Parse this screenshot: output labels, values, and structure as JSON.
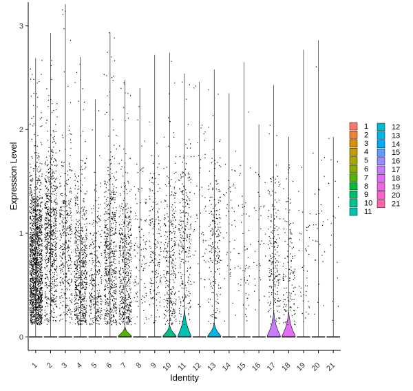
{
  "chart_data": {
    "type": "violin",
    "xlabel": "Identity",
    "ylabel": "Expression Level",
    "categories": [
      "1",
      "2",
      "3",
      "4",
      "5",
      "6",
      "7",
      "8",
      "9",
      "10",
      "11",
      "12",
      "13",
      "14",
      "15",
      "16",
      "17",
      "18",
      "19",
      "20",
      "21"
    ],
    "ylim": [
      -0.13,
      3.23
    ],
    "yticks": [
      0,
      1,
      2,
      3
    ],
    "ymax_per_group": [
      2.69,
      2.93,
      3.21,
      2.7,
      2.29,
      2.94,
      2.48,
      2.4,
      2.72,
      2.74,
      2.54,
      2.46,
      2.58,
      2.35,
      2.65,
      2.05,
      2.43,
      1.93,
      2.77,
      2.86,
      1.93
    ],
    "violin_peak_width": [
      0,
      0,
      0,
      0,
      0,
      0,
      0.45,
      0,
      0,
      0.45,
      0.45,
      0,
      0.45,
      0,
      0,
      0,
      0.45,
      0.45,
      0,
      0,
      0
    ],
    "violin_shape_height": [
      0,
      0,
      0,
      0,
      0,
      0,
      0.1,
      0,
      0,
      0.12,
      0.27,
      0,
      0.14,
      0,
      0,
      0,
      0.25,
      0.25,
      0,
      0,
      0
    ],
    "nonzero_points_per_group": [
      1500,
      700,
      380,
      600,
      280,
      550,
      500,
      110,
      170,
      300,
      260,
      55,
      200,
      45,
      55,
      35,
      200,
      130,
      45,
      30,
      18
    ],
    "points_center": [
      0.7,
      1.0,
      0.9,
      0.6,
      0.5,
      0.7,
      0.6,
      0.8,
      0.9,
      0.7,
      0.9,
      1.2,
      0.9,
      1.0,
      0.9,
      0.9,
      0.8,
      0.6,
      0.7,
      1.2,
      1.1
    ],
    "grid": false,
    "legend_position": "right",
    "legend_columns": 2,
    "colors": [
      "#F8766D",
      "#EB8335",
      "#DA8F00",
      "#C49A00",
      "#A9A400",
      "#86AC00",
      "#53B400",
      "#00BA38",
      "#00BE67",
      "#00C08D",
      "#00C0AF",
      "#00BDCD",
      "#00B6E7",
      "#00ABFD",
      "#619CFF",
      "#9C8DFF",
      "#C77CFF",
      "#E46DF6",
      "#F564E3",
      "#FF61C9",
      "#FF67A4"
    ]
  }
}
